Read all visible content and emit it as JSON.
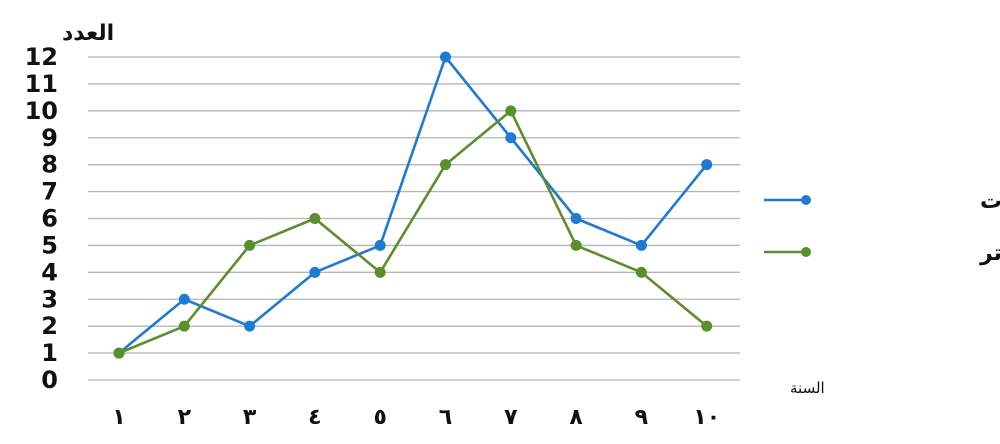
{
  "chart_data": {
    "type": "line",
    "ylabel": "العدد",
    "xlabel": "السنة",
    "categories": [
      "١",
      "٢",
      "٣",
      "٤",
      "٥",
      "٦",
      "٧",
      "٨",
      "٩",
      "١٠"
    ],
    "ylim": [
      0,
      12
    ],
    "yticks": [
      "0",
      "1",
      "2",
      "3",
      "4",
      "5",
      "6",
      "7",
      "8",
      "9",
      "10",
      "11",
      "12"
    ],
    "grid": true,
    "legend_position": "right",
    "series": [
      {
        "name": "جوالات",
        "color": "#1f7bd1",
        "values": [
          1,
          3,
          2,
          4,
          5,
          12,
          9,
          6,
          5,
          8
        ]
      },
      {
        "name": "أجهزة الكمبيوتر",
        "color": "#5b8f2d",
        "values": [
          1,
          2,
          5,
          6,
          4,
          8,
          10,
          5,
          4,
          2
        ]
      }
    ]
  }
}
